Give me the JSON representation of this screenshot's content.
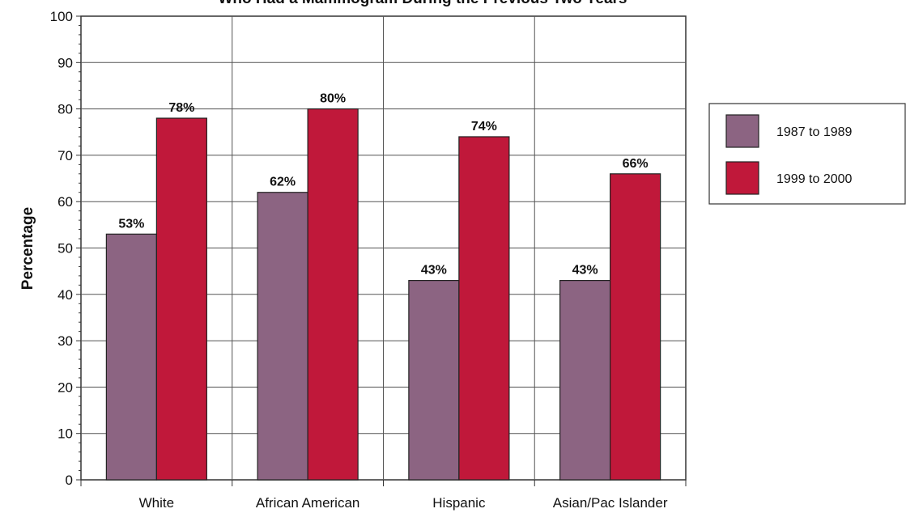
{
  "chart_data": {
    "type": "bar",
    "title": "Who Had a Mammogram During the Previous Two Years",
    "xlabel": "",
    "ylabel": "Percentage",
    "ylim": [
      0,
      100
    ],
    "yticks": [
      0,
      10,
      20,
      30,
      40,
      50,
      60,
      70,
      80,
      90,
      100
    ],
    "grid": true,
    "legend_position": "right",
    "categories": [
      "White",
      "African American",
      "Hispanic",
      "Asian/Pac Islander"
    ],
    "series": [
      {
        "name": "1987 to 1989",
        "color": "#8c6482",
        "values": [
          53,
          62,
          43,
          43
        ],
        "labels": [
          "53%",
          "62%",
          "43%",
          "43%"
        ]
      },
      {
        "name": "1999 to 2000",
        "color": "#c0183a",
        "values": [
          78,
          80,
          74,
          66
        ],
        "labels": [
          "78%",
          "80%",
          "74%",
          "66%"
        ]
      }
    ]
  }
}
